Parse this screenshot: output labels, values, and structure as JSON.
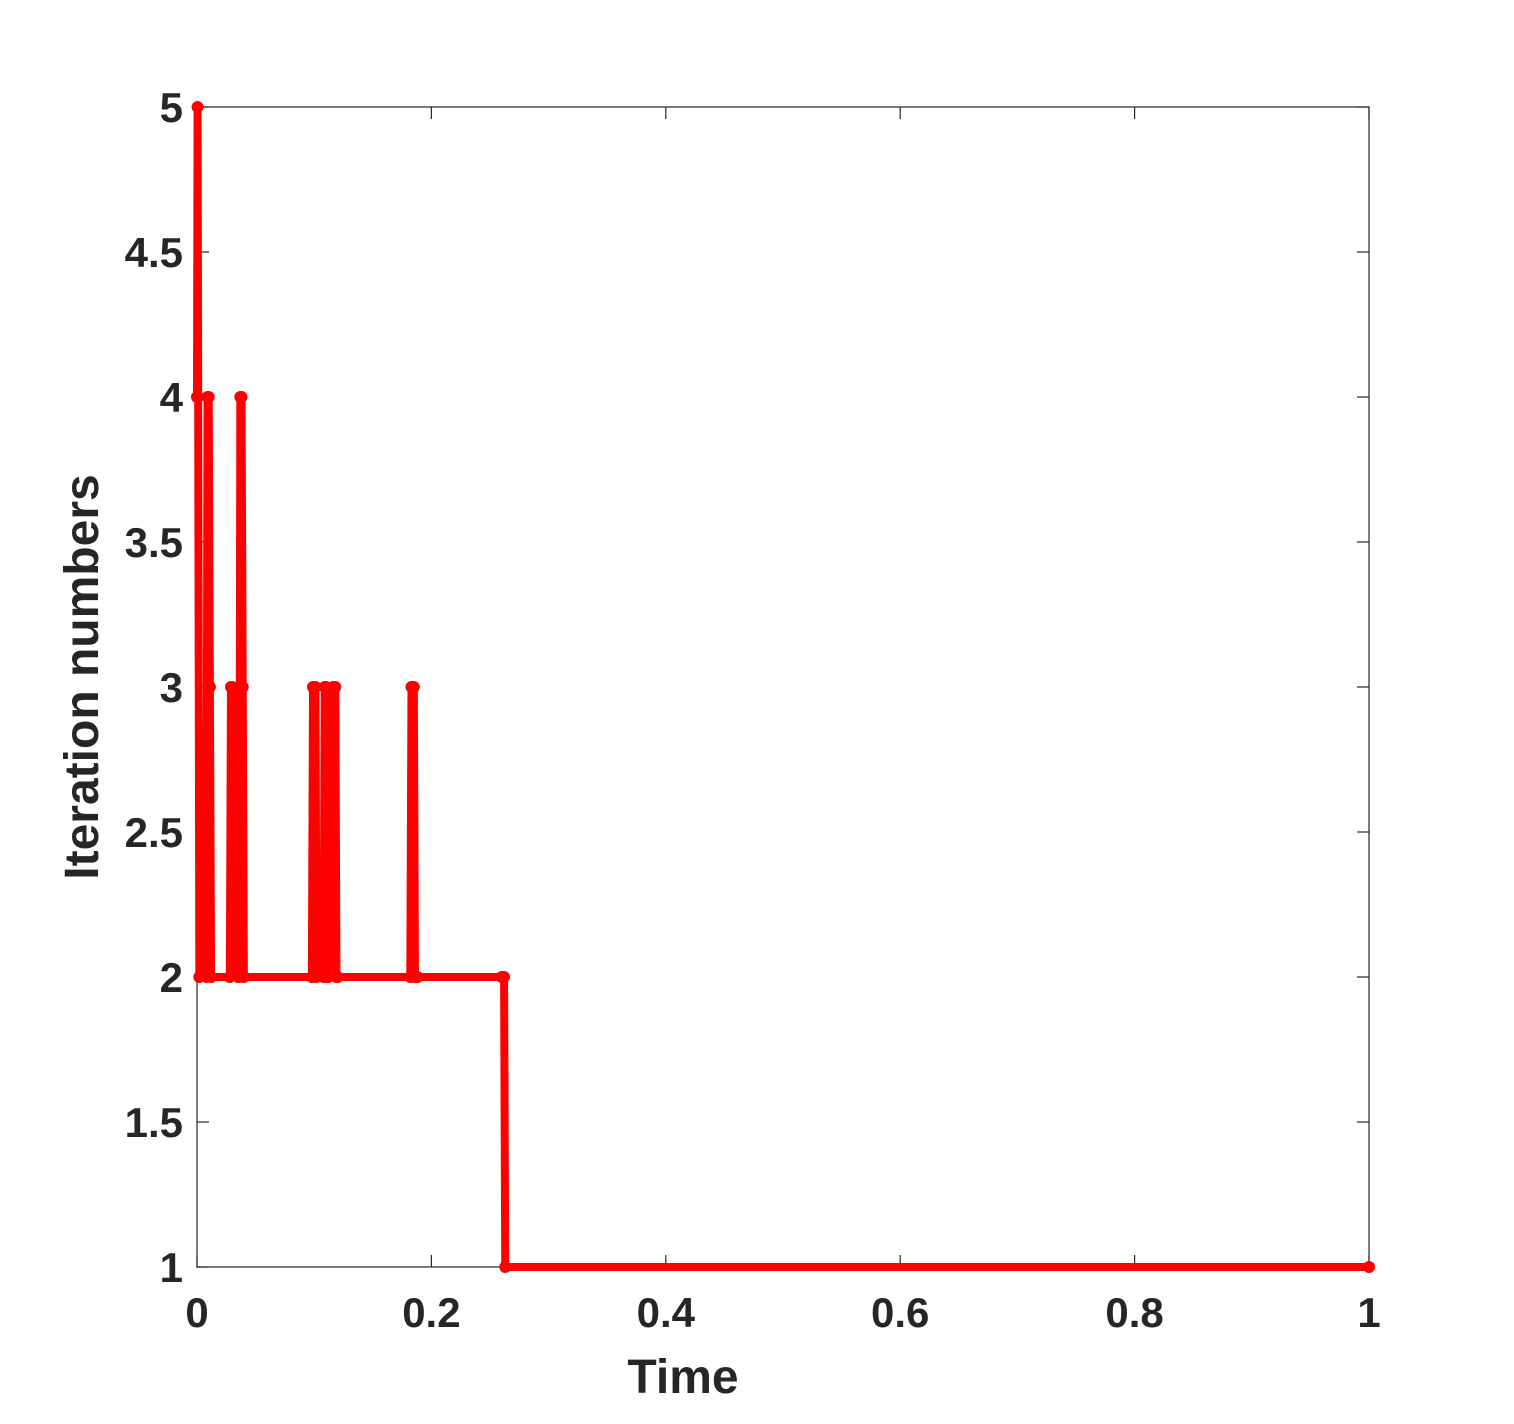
{
  "chart_data": {
    "type": "line",
    "title": "",
    "xlabel": "Time",
    "ylabel": "Iteration numbers",
    "xlim": [
      0,
      1
    ],
    "ylim": [
      1,
      5
    ],
    "x_ticks": [
      "0",
      "0.2",
      "0.4",
      "0.6",
      "0.8",
      "1"
    ],
    "x_tick_values": [
      0,
      0.2,
      0.4,
      0.6,
      0.8,
      1
    ],
    "y_ticks": [
      "1",
      "1.5",
      "2",
      "2.5",
      "3",
      "3.5",
      "4",
      "4.5",
      "5"
    ],
    "y_tick_values": [
      1,
      1.5,
      2,
      2.5,
      3,
      3.5,
      4,
      4.5,
      5
    ],
    "grid": false,
    "box": true,
    "colors": {
      "series": "#ff0000",
      "axes": "#262626"
    },
    "series": [
      {
        "marker": "circle",
        "x": [
          0,
          0.0005,
          0.001,
          0.002,
          0.008,
          0.009,
          0.01,
          0.011,
          0.012,
          0.028,
          0.029,
          0.03,
          0.035,
          0.036,
          0.037,
          0.038,
          0.039,
          0.04,
          0.098,
          0.099,
          0.1,
          0.101,
          0.102,
          0.108,
          0.109,
          0.11,
          0.111,
          0.112,
          0.116,
          0.117,
          0.118,
          0.119,
          0.12,
          0.182,
          0.183,
          0.184,
          0.185,
          0.186,
          0.187,
          0.188,
          0.26,
          0.262,
          0.263,
          1.0
        ],
        "y": [
          4,
          5,
          4,
          2,
          2,
          4,
          4,
          3,
          2,
          2,
          3,
          3,
          2,
          2,
          4,
          4,
          3,
          2,
          2,
          3,
          3,
          3,
          2,
          2,
          3,
          3,
          2,
          2,
          3,
          3,
          3,
          2,
          2,
          2,
          3,
          3,
          3,
          2,
          2,
          2,
          2,
          2,
          1,
          1
        ]
      }
    ]
  }
}
